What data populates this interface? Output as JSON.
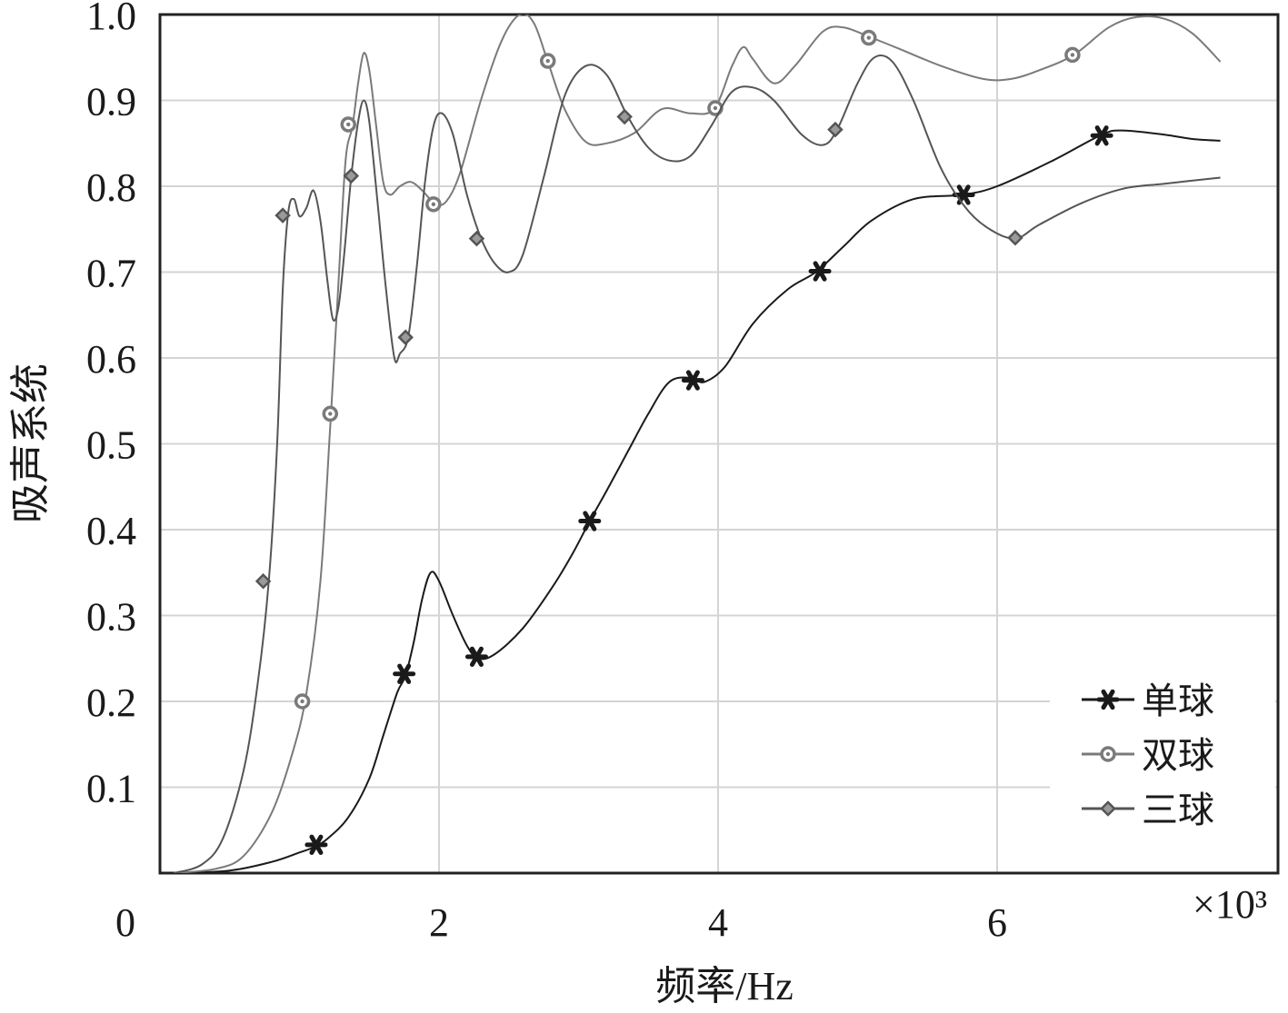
{
  "chart_data": {
    "type": "line",
    "xlabel": "频率/Hz",
    "ylabel": "吸声系统",
    "x_multiplier_label": "×10³",
    "xlim": [
      0,
      7
    ],
    "ylim": [
      0,
      1.0
    ],
    "x_ticks": [
      {
        "value": 0,
        "label": "0"
      },
      {
        "value": 2,
        "label": "2"
      },
      {
        "value": 4,
        "label": "4"
      },
      {
        "value": 6,
        "label": "6"
      }
    ],
    "y_ticks": [
      {
        "value": 0.1,
        "label": "0.1"
      },
      {
        "value": 0.2,
        "label": "0.2"
      },
      {
        "value": 0.3,
        "label": "0.3"
      },
      {
        "value": 0.4,
        "label": "0.4"
      },
      {
        "value": 0.5,
        "label": "0.5"
      },
      {
        "value": 0.6,
        "label": "0.6"
      },
      {
        "value": 0.7,
        "label": "0.7"
      },
      {
        "value": 0.8,
        "label": "0.8"
      },
      {
        "value": 0.9,
        "label": "0.9"
      },
      {
        "value": 1.0,
        "label": "1.0"
      }
    ],
    "grid": true,
    "legend_position": "bottom-right",
    "series": [
      {
        "name": "单球",
        "marker": "star",
        "color": "#1a1a1a",
        "line": [
          [
            0.1,
            0.0
          ],
          [
            0.5,
            0.003
          ],
          [
            0.8,
            0.013
          ],
          [
            1.0,
            0.024
          ],
          [
            1.1,
            0.03
          ],
          [
            1.2,
            0.04
          ],
          [
            1.35,
            0.065
          ],
          [
            1.5,
            0.11
          ],
          [
            1.6,
            0.16
          ],
          [
            1.7,
            0.21
          ],
          [
            1.76,
            0.23
          ],
          [
            1.82,
            0.27
          ],
          [
            1.88,
            0.32
          ],
          [
            1.94,
            0.35
          ],
          [
            2.0,
            0.34
          ],
          [
            2.1,
            0.3
          ],
          [
            2.2,
            0.265
          ],
          [
            2.28,
            0.25
          ],
          [
            2.4,
            0.255
          ],
          [
            2.6,
            0.285
          ],
          [
            2.8,
            0.33
          ],
          [
            2.95,
            0.37
          ],
          [
            3.08,
            0.41
          ],
          [
            3.2,
            0.445
          ],
          [
            3.35,
            0.49
          ],
          [
            3.5,
            0.535
          ],
          [
            3.65,
            0.572
          ],
          [
            3.8,
            0.577
          ],
          [
            3.9,
            0.572
          ],
          [
            4.05,
            0.59
          ],
          [
            4.25,
            0.64
          ],
          [
            4.5,
            0.68
          ],
          [
            4.7,
            0.7
          ],
          [
            4.9,
            0.73
          ],
          [
            5.1,
            0.76
          ],
          [
            5.4,
            0.785
          ],
          [
            5.75,
            0.79
          ],
          [
            6.0,
            0.8
          ],
          [
            6.4,
            0.83
          ],
          [
            6.75,
            0.86
          ],
          [
            6.9,
            0.865
          ],
          [
            7.2,
            0.86
          ],
          [
            7.4,
            0.855
          ],
          [
            7.6,
            0.853
          ]
        ],
        "marker_points": [
          [
            1.12,
            0.033
          ],
          [
            1.75,
            0.232
          ],
          [
            2.27,
            0.252
          ],
          [
            3.08,
            0.41
          ],
          [
            3.82,
            0.574
          ],
          [
            4.73,
            0.701
          ],
          [
            5.76,
            0.79
          ],
          [
            6.75,
            0.859
          ]
        ]
      },
      {
        "name": "双球",
        "marker": "circle",
        "color": "#7a7a7a",
        "line": [
          [
            0.1,
            0.0
          ],
          [
            0.4,
            0.005
          ],
          [
            0.6,
            0.02
          ],
          [
            0.8,
            0.07
          ],
          [
            0.95,
            0.14
          ],
          [
            1.05,
            0.21
          ],
          [
            1.15,
            0.34
          ],
          [
            1.22,
            0.52
          ],
          [
            1.28,
            0.69
          ],
          [
            1.33,
            0.83
          ],
          [
            1.38,
            0.87
          ],
          [
            1.42,
            0.92
          ],
          [
            1.46,
            0.955
          ],
          [
            1.5,
            0.935
          ],
          [
            1.55,
            0.87
          ],
          [
            1.6,
            0.805
          ],
          [
            1.65,
            0.79
          ],
          [
            1.72,
            0.8
          ],
          [
            1.8,
            0.805
          ],
          [
            1.88,
            0.795
          ],
          [
            1.97,
            0.78
          ],
          [
            2.05,
            0.782
          ],
          [
            2.15,
            0.815
          ],
          [
            2.3,
            0.9
          ],
          [
            2.45,
            0.97
          ],
          [
            2.58,
            1.0
          ],
          [
            2.68,
            0.99
          ],
          [
            2.78,
            0.945
          ],
          [
            2.9,
            0.89
          ],
          [
            3.05,
            0.852
          ],
          [
            3.2,
            0.85
          ],
          [
            3.4,
            0.862
          ],
          [
            3.6,
            0.89
          ],
          [
            3.8,
            0.885
          ],
          [
            3.97,
            0.89
          ],
          [
            4.1,
            0.94
          ],
          [
            4.18,
            0.962
          ],
          [
            4.25,
            0.948
          ],
          [
            4.4,
            0.92
          ],
          [
            4.55,
            0.94
          ],
          [
            4.75,
            0.98
          ],
          [
            4.9,
            0.985
          ],
          [
            5.1,
            0.973
          ],
          [
            5.3,
            0.96
          ],
          [
            5.6,
            0.94
          ],
          [
            5.9,
            0.925
          ],
          [
            6.1,
            0.925
          ],
          [
            6.3,
            0.935
          ],
          [
            6.55,
            0.953
          ],
          [
            6.8,
            0.985
          ],
          [
            7.0,
            0.997
          ],
          [
            7.2,
            0.995
          ],
          [
            7.4,
            0.978
          ],
          [
            7.6,
            0.945
          ]
        ],
        "marker_points": [
          [
            1.02,
            0.2
          ],
          [
            1.22,
            0.535
          ],
          [
            1.35,
            0.872
          ],
          [
            1.96,
            0.779
          ],
          [
            2.78,
            0.946
          ],
          [
            3.98,
            0.891
          ],
          [
            5.08,
            0.973
          ],
          [
            6.54,
            0.953
          ]
        ]
      },
      {
        "name": "三球",
        "marker": "diamond",
        "color": "#555555",
        "line": [
          [
            0.1,
            0.0
          ],
          [
            0.3,
            0.01
          ],
          [
            0.45,
            0.04
          ],
          [
            0.6,
            0.12
          ],
          [
            0.7,
            0.22
          ],
          [
            0.78,
            0.34
          ],
          [
            0.84,
            0.5
          ],
          [
            0.88,
            0.68
          ],
          [
            0.92,
            0.77
          ],
          [
            0.96,
            0.785
          ],
          [
            1.0,
            0.765
          ],
          [
            1.05,
            0.775
          ],
          [
            1.1,
            0.795
          ],
          [
            1.15,
            0.76
          ],
          [
            1.2,
            0.69
          ],
          [
            1.24,
            0.645
          ],
          [
            1.28,
            0.66
          ],
          [
            1.32,
            0.72
          ],
          [
            1.37,
            0.81
          ],
          [
            1.42,
            0.875
          ],
          [
            1.46,
            0.9
          ],
          [
            1.5,
            0.875
          ],
          [
            1.56,
            0.78
          ],
          [
            1.62,
            0.68
          ],
          [
            1.68,
            0.6
          ],
          [
            1.72,
            0.605
          ],
          [
            1.78,
            0.625
          ],
          [
            1.84,
            0.705
          ],
          [
            1.9,
            0.805
          ],
          [
            1.96,
            0.87
          ],
          [
            2.02,
            0.885
          ],
          [
            2.1,
            0.86
          ],
          [
            2.2,
            0.79
          ],
          [
            2.3,
            0.74
          ],
          [
            2.4,
            0.71
          ],
          [
            2.5,
            0.7
          ],
          [
            2.6,
            0.72
          ],
          [
            2.75,
            0.81
          ],
          [
            2.9,
            0.905
          ],
          [
            3.05,
            0.94
          ],
          [
            3.2,
            0.93
          ],
          [
            3.35,
            0.882
          ],
          [
            3.5,
            0.845
          ],
          [
            3.65,
            0.83
          ],
          [
            3.8,
            0.835
          ],
          [
            3.95,
            0.87
          ],
          [
            4.1,
            0.91
          ],
          [
            4.25,
            0.915
          ],
          [
            4.4,
            0.9
          ],
          [
            4.6,
            0.86
          ],
          [
            4.75,
            0.848
          ],
          [
            4.85,
            0.865
          ],
          [
            5.0,
            0.92
          ],
          [
            5.12,
            0.95
          ],
          [
            5.25,
            0.945
          ],
          [
            5.4,
            0.9
          ],
          [
            5.6,
            0.82
          ],
          [
            5.8,
            0.77
          ],
          [
            6.0,
            0.745
          ],
          [
            6.15,
            0.74
          ],
          [
            6.3,
            0.755
          ],
          [
            6.6,
            0.78
          ],
          [
            6.9,
            0.797
          ],
          [
            7.2,
            0.803
          ],
          [
            7.6,
            0.81
          ]
        ],
        "marker_points": [
          [
            0.74,
            0.34
          ],
          [
            0.88,
            0.766
          ],
          [
            1.37,
            0.812
          ],
          [
            1.76,
            0.624
          ],
          [
            2.27,
            0.739
          ],
          [
            3.33,
            0.881
          ],
          [
            4.84,
            0.866
          ],
          [
            6.13,
            0.74
          ]
        ]
      }
    ]
  }
}
